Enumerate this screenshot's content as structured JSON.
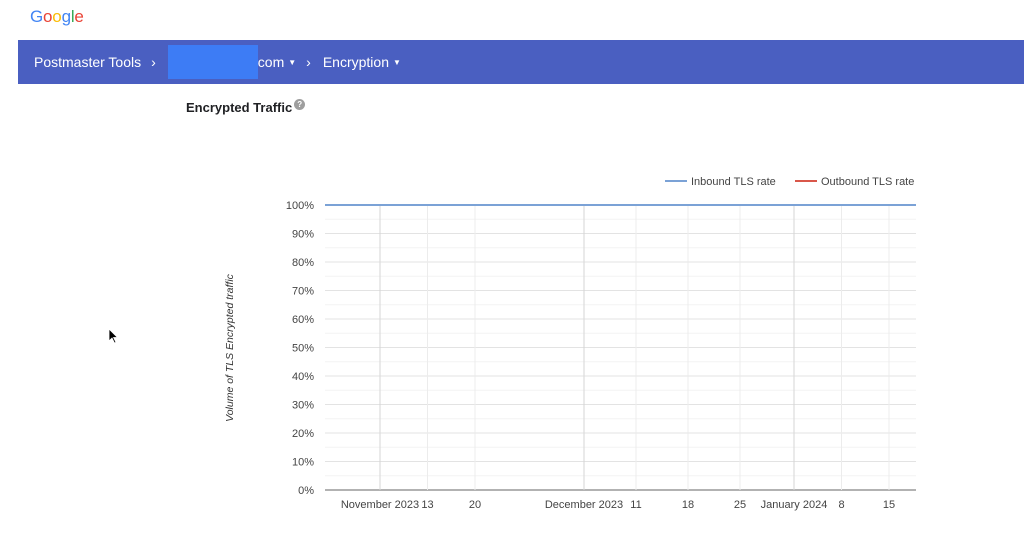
{
  "logo": {
    "letters": [
      {
        "char": "G",
        "color": "#4285f4"
      },
      {
        "char": "o",
        "color": "#ea4335"
      },
      {
        "char": "o",
        "color": "#fbbc05"
      },
      {
        "char": "g",
        "color": "#4285f4"
      },
      {
        "char": "l",
        "color": "#34a853"
      },
      {
        "char": "e",
        "color": "#ea4335"
      }
    ]
  },
  "nav": {
    "home_label": "Postmaster Tools",
    "domain_suffix": "com",
    "section_label": "Encryption",
    "separator_icon": "chevron-right-icon",
    "dropdown_icon": "caret-down-icon",
    "bar_color": "#4a5fc1",
    "redaction_color": "#3d7cf5"
  },
  "page": {
    "title": "Encrypted Traffic",
    "help_icon": "help-icon"
  },
  "chart_data": {
    "type": "line",
    "ylabel": "Volume of TLS Encrypted traffic",
    "y_ticks": [
      "0%",
      "10%",
      "20%",
      "30%",
      "40%",
      "50%",
      "60%",
      "70%",
      "80%",
      "90%",
      "100%"
    ],
    "ylim": [
      0,
      100
    ],
    "x_ticks": [
      "November 2023",
      "13",
      "20",
      "December 2023",
      "11",
      "18",
      "25",
      "January 2024",
      "8",
      "15"
    ],
    "legend_placement": "top-right",
    "grid": true,
    "series": [
      {
        "name": "Inbound TLS rate",
        "color": "#7ba2d6",
        "values": [
          100,
          100,
          100,
          100,
          100,
          100,
          100,
          100,
          100,
          100
        ]
      },
      {
        "name": "Outbound TLS rate",
        "color": "#d9574a",
        "values": []
      }
    ]
  }
}
